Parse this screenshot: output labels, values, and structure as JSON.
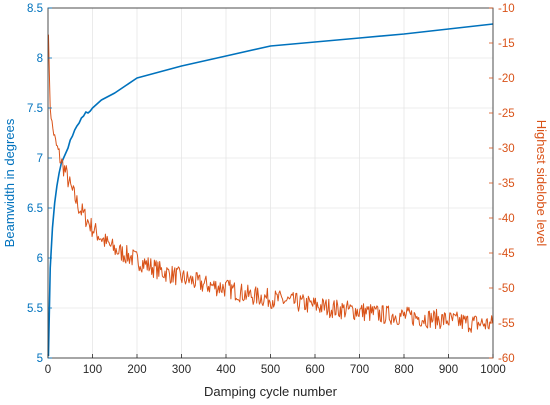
{
  "chart_data": {
    "type": "line",
    "title": "",
    "xlabel": "Damping cycle number",
    "ylabel_left": "Beamwidth in degrees",
    "ylabel_right": "Highest sidelobe level",
    "xlim": [
      0,
      1000
    ],
    "ylim_left": [
      5,
      8.5
    ],
    "ylim_right": [
      -60,
      -10
    ],
    "x_ticks": [
      "0",
      "100",
      "200",
      "300",
      "400",
      "500",
      "600",
      "700",
      "800",
      "900",
      "1000"
    ],
    "y_left_ticks": [
      "5",
      "5.5",
      "6",
      "6.5",
      "7",
      "7.5",
      "8",
      "8.5"
    ],
    "y_right_ticks": [
      "-10",
      "-15",
      "-20",
      "-25",
      "-30",
      "-35",
      "-40",
      "-45",
      "-50",
      "-55",
      "-60"
    ],
    "grid": true,
    "colors": {
      "left_axis": "#0072BD",
      "right_axis": "#D95319",
      "grid": "#e6e6e6",
      "box": "#262626"
    },
    "series": [
      {
        "axis": "left",
        "x": [
          1,
          5,
          10,
          15,
          20,
          25,
          30,
          35,
          40,
          45,
          50,
          55,
          60,
          65,
          70,
          75,
          80,
          85,
          90,
          95,
          100,
          120,
          150,
          200,
          300,
          400,
          500,
          600,
          700,
          800,
          900,
          1000
        ],
        "values": [
          5.02,
          5.9,
          6.3,
          6.55,
          6.72,
          6.85,
          6.95,
          7.0,
          7.05,
          7.1,
          7.18,
          7.22,
          7.28,
          7.32,
          7.35,
          7.4,
          7.42,
          7.46,
          7.45,
          7.47,
          7.5,
          7.58,
          7.65,
          7.8,
          7.92,
          8.02,
          8.12,
          8.16,
          8.2,
          8.24,
          8.29,
          8.34
        ]
      },
      {
        "axis": "right",
        "x": [
          1,
          3,
          5,
          8,
          10,
          15,
          20,
          25,
          30,
          40,
          50,
          60,
          70,
          80,
          100,
          130,
          150,
          200,
          250,
          300,
          350,
          400,
          450,
          500,
          550,
          600,
          650,
          700,
          750,
          800,
          850,
          900,
          950,
          1000
        ],
        "values": [
          -13,
          -20,
          -24,
          -26,
          -27,
          -28.5,
          -30,
          -31,
          -32,
          -33.5,
          -35.5,
          -37,
          -38.5,
          -39.5,
          -41.5,
          -43.5,
          -44.5,
          -46,
          -47.5,
          -48.5,
          -49.5,
          -50,
          -51,
          -51.5,
          -52,
          -52.5,
          -53,
          -53.3,
          -53.8,
          -54,
          -54.3,
          -54.6,
          -55,
          -55.2
        ]
      }
    ]
  }
}
